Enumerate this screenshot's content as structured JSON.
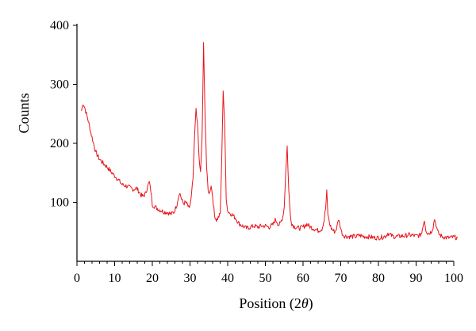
{
  "chart_data": {
    "type": "line",
    "title": "",
    "xlabel": "Position (2θ)",
    "ylabel": "Counts",
    "xlim": [
      0,
      100
    ],
    "ylim": [
      0,
      400
    ],
    "xticks": [
      0,
      10,
      20,
      30,
      40,
      50,
      60,
      70,
      80,
      90,
      100
    ],
    "yticks": [
      100,
      200,
      300,
      400
    ],
    "grid": false,
    "legend": "none",
    "colors": {
      "series": "#e8141b",
      "axis": "#000000"
    },
    "series": [
      {
        "x": [
          1.2,
          1.6,
          2.0,
          2.5,
          3.0,
          4.0,
          5.0,
          6.0,
          7.0,
          8.0,
          9.0,
          10.0,
          11.0,
          12.0,
          13.0,
          14.0,
          15.0,
          15.8,
          16.5,
          17.0,
          17.6,
          18.2,
          18.8,
          19.2,
          19.6,
          20.0,
          21.0,
          22.0,
          23.0,
          24.0,
          25.0,
          25.8,
          26.5,
          27.0,
          27.4,
          27.8,
          28.3,
          28.8,
          29.3,
          29.8,
          30.3,
          30.8,
          31.2,
          31.6,
          32.0,
          32.4,
          32.8,
          33.2,
          33.6,
          34.0,
          34.4,
          34.8,
          35.2,
          35.6,
          36.0,
          36.5,
          37.0,
          37.5,
          38.0,
          38.4,
          38.8,
          39.2,
          39.6,
          40.0,
          40.5,
          41.0,
          42.0,
          43.0,
          44.0,
          45.0,
          46.0,
          47.0,
          48.0,
          49.0,
          50.0,
          51.0,
          52.0,
          52.6,
          53.0,
          53.5,
          54.0,
          54.6,
          55.0,
          55.4,
          55.8,
          56.2,
          56.6,
          57.0,
          57.5,
          58.0,
          59.0,
          60.0,
          61.0,
          62.0,
          63.0,
          64.0,
          65.0,
          65.6,
          66.0,
          66.3,
          66.6,
          67.0,
          67.5,
          68.0,
          68.5,
          69.0,
          69.4,
          69.8,
          70.2,
          70.6,
          71.0,
          72.0,
          73.0,
          74.0,
          75.0,
          76.0,
          77.0,
          78.0,
          79.0,
          80.0,
          81.0,
          82.0,
          82.5,
          83.0,
          84.0,
          85.0,
          86.0,
          87.0,
          88.0,
          89.0,
          90.0,
          91.0,
          91.5,
          91.8,
          92.2,
          92.6,
          93.0,
          93.5,
          94.0,
          94.5,
          94.9,
          95.3,
          95.7,
          96.2,
          97.0,
          98.0,
          99.0,
          100.0,
          101.0
        ],
        "y": [
          255,
          268,
          262,
          250,
          238,
          210,
          185,
          173,
          166,
          160,
          152,
          145,
          138,
          130,
          128,
          125,
          122,
          124,
          118,
          112,
          110,
          115,
          128,
          134,
          120,
          96,
          91,
          87,
          84,
          83,
          80,
          84,
          96,
          112,
          115,
          104,
          98,
          100,
          96,
          88,
          106,
          140,
          210,
          260,
          230,
          175,
          150,
          210,
          368,
          250,
          160,
          120,
          115,
          130,
          110,
          78,
          70,
          74,
          80,
          165,
          290,
          230,
          110,
          85,
          82,
          80,
          74,
          64,
          60,
          56,
          58,
          60,
          58,
          60,
          60,
          58,
          62,
          70,
          68,
          62,
          64,
          75,
          92,
          150,
          195,
          120,
          80,
          64,
          60,
          58,
          56,
          58,
          63,
          58,
          55,
          52,
          55,
          70,
          90,
          118,
          80,
          65,
          56,
          52,
          50,
          58,
          72,
          62,
          50,
          45,
          43,
          42,
          42,
          42,
          44,
          42,
          42,
          41,
          40,
          40,
          41,
          43,
          48,
          45,
          42,
          42,
          43,
          43,
          45,
          44,
          43,
          44,
          48,
          60,
          70,
          54,
          48,
          48,
          50,
          58,
          72,
          62,
          50,
          45,
          42,
          40,
          40,
          41,
          40
        ]
      }
    ]
  }
}
